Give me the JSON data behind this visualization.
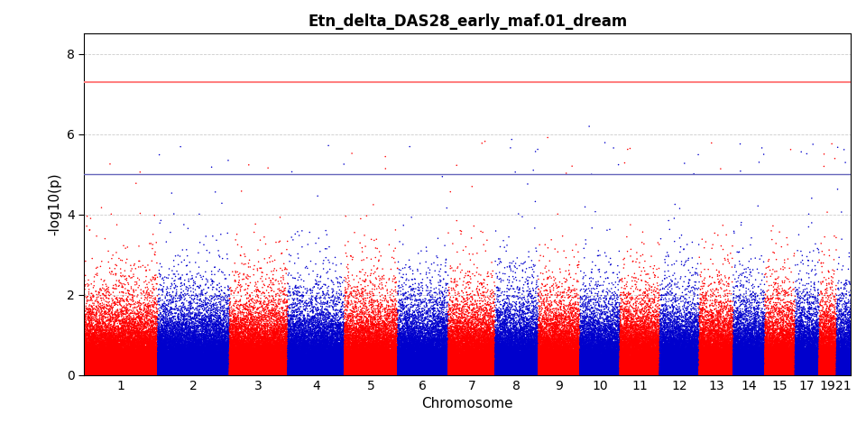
{
  "title": "Etn_delta_DAS28_early_maf.01_dream",
  "xlabel": "Chromosome",
  "ylabel": "-log10(p)",
  "chromosomes": [
    1,
    2,
    3,
    4,
    5,
    6,
    7,
    8,
    9,
    10,
    11,
    12,
    13,
    14,
    15,
    17,
    19,
    21
  ],
  "gwas_threshold": 7.3,
  "suggestive_threshold": 5.0,
  "colors_odd": "#FF0000",
  "colors_even": "#0000CD",
  "ylim": [
    0,
    8.5
  ],
  "yticks": [
    0,
    2,
    4,
    6,
    8
  ],
  "background_color": "#FFFFFF",
  "grid_color": "#CCCCCC",
  "point_size": 1.2,
  "chr_sizes": {
    "1": 249250621,
    "2": 243199373,
    "3": 198022430,
    "4": 191154276,
    "5": 180915260,
    "6": 171115067,
    "7": 159138663,
    "8": 146364022,
    "9": 141213431,
    "10": 135534747,
    "11": 135006516,
    "12": 133851895,
    "13": 115169878,
    "14": 107349540,
    "15": 102531392,
    "17": 81195210,
    "19": 59128983,
    "21": 48129895
  },
  "snp_density": 25000,
  "seed": 42,
  "gwas_line_color": "#FF8080",
  "suggestive_line_color": "#6666BB",
  "title_fontsize": 12,
  "axis_fontsize": 11,
  "tick_fontsize": 10
}
